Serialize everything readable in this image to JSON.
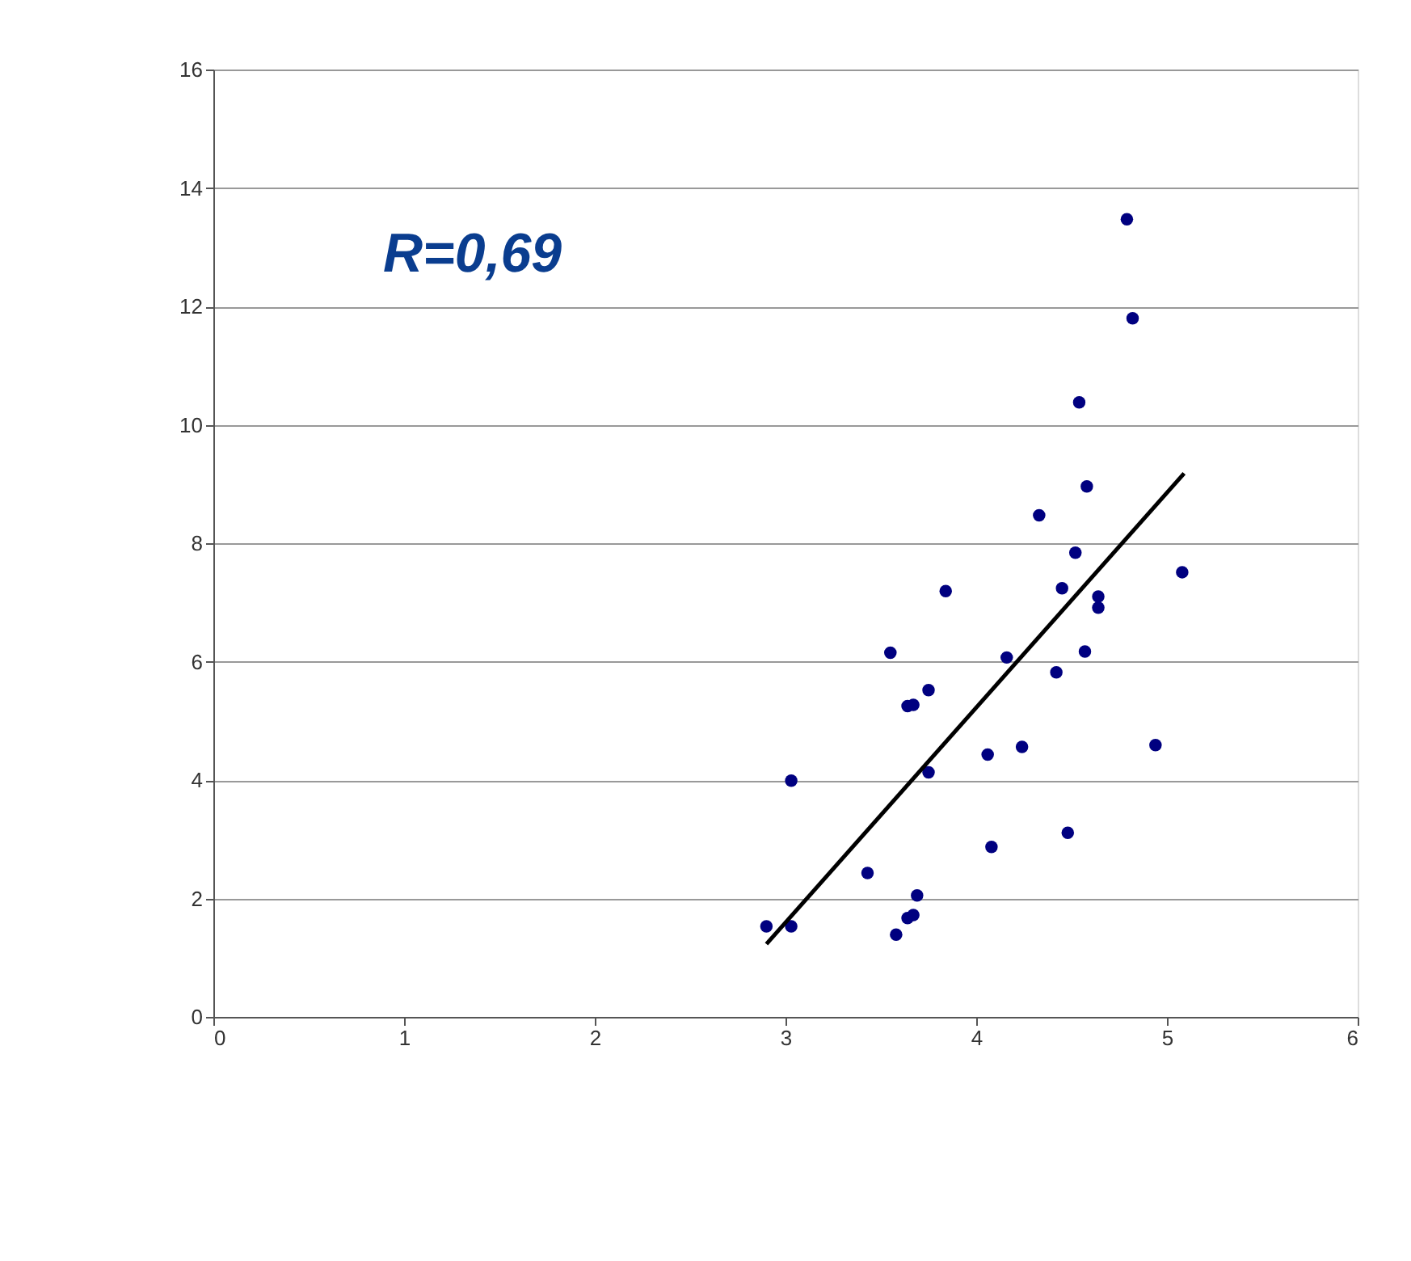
{
  "chart_data": {
    "type": "scatter",
    "annotations": [
      "R=0,69"
    ],
    "xlim": [
      0,
      6
    ],
    "xticks": [
      0,
      1,
      2,
      3,
      4,
      5,
      6
    ],
    "ylim": [
      0,
      16
    ],
    "yticks": [
      0,
      2,
      4,
      6,
      8,
      10,
      12,
      14,
      16
    ],
    "grid": "y",
    "series": [
      {
        "color": "#000080",
        "marker": "circle",
        "x": [
          2.9,
          3.03,
          3.03,
          3.43,
          3.55,
          3.58,
          3.64,
          3.67,
          3.69,
          3.64,
          3.67,
          3.75,
          3.75,
          3.84,
          4.06,
          4.08,
          4.16,
          4.24,
          4.33,
          4.42,
          4.45,
          4.52,
          4.48,
          4.54,
          4.57,
          4.58,
          4.64,
          4.64,
          4.94,
          5.08,
          4.79,
          4.82
        ],
        "values": [
          1.53,
          1.53,
          3.99,
          2.43,
          6.15,
          1.39,
          1.67,
          1.72,
          2.05,
          5.25,
          5.27,
          5.52,
          4.13,
          7.19,
          4.43,
          2.87,
          6.07,
          4.56,
          8.47,
          5.82,
          7.24,
          7.84,
          3.11,
          10.38,
          6.17,
          8.96,
          7.1,
          6.91,
          4.59,
          7.51,
          13.47,
          11.8
        ]
      },
      {
        "type": "line",
        "color": "#000000",
        "x": [
          2.9,
          5.09
        ],
        "values": [
          1.23,
          9.18
        ],
        "line_style": "solid",
        "marker": "none"
      }
    ]
  }
}
